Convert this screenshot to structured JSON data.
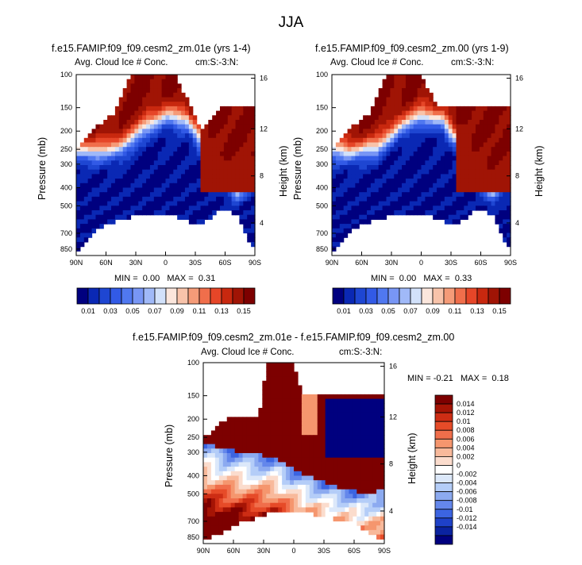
{
  "figure_title": "JJA",
  "chart_data": [
    {
      "type": "heatmap",
      "title": "f.e15.FAMIP.f09_f09.cesm2_zm.01e (yrs 1-4)",
      "left_label": "Avg. Cloud Ice # Conc.",
      "right_label": "cm:S:-3:N:",
      "ylabel": "Pressure (mb)",
      "y2label": "Height (km)",
      "x_ticks": [
        "90N",
        "60N",
        "30N",
        "0",
        "30S",
        "60S",
        "90S"
      ],
      "y_ticks": [
        "100",
        "150",
        "200",
        "250",
        "300",
        "400",
        "500",
        "700",
        "850"
      ],
      "y2_ticks": [
        "16",
        "12",
        "8",
        "4"
      ],
      "min_label": "MIN =",
      "min": "0.00",
      "max_label": "MAX =",
      "max": "0.31"
    },
    {
      "type": "heatmap",
      "title": "f.e15.FAMIP.f09_f09.cesm2_zm.00 (yrs 1-9)",
      "left_label": "Avg. Cloud Ice # Conc.",
      "right_label": "cm:S:-3:N:",
      "ylabel": "Pressure (mb)",
      "y2label": "Height (km)",
      "x_ticks": [
        "90N",
        "60N",
        "30N",
        "0",
        "30S",
        "60S",
        "90S"
      ],
      "y_ticks": [
        "100",
        "150",
        "200",
        "250",
        "300",
        "400",
        "500",
        "700",
        "850"
      ],
      "y2_ticks": [
        "16",
        "12",
        "8",
        "4"
      ],
      "min_label": "MIN =",
      "min": "0.00",
      "max_label": "MAX =",
      "max": "0.33"
    },
    {
      "type": "heatmap",
      "title": "f.e15.FAMIP.f09_f09.cesm2_zm.01e - f.e15.FAMIP.f09_f09.cesm2_zm.00",
      "left_label": "Avg. Cloud Ice # Conc.",
      "right_label": "cm:S:-3:N:",
      "ylabel": "Pressure (mb)",
      "y2label": "Height (km)",
      "x_ticks": [
        "90N",
        "60N",
        "30N",
        "0",
        "30S",
        "60S",
        "90S"
      ],
      "y_ticks": [
        "100",
        "150",
        "200",
        "250",
        "300",
        "400",
        "500",
        "700",
        "850"
      ],
      "y2_ticks": [
        "16",
        "12",
        "8",
        "4"
      ],
      "min_label": "MIN =",
      "min": "-0.21",
      "max_label": "MAX =",
      "max": "0.18"
    }
  ],
  "colorbar_top": {
    "colors": [
      "#00007f",
      "#0a28b4",
      "#1e46d2",
      "#325ae6",
      "#5078f0",
      "#7896f5",
      "#a0b9f8",
      "#d2e1fa",
      "#fbe6dc",
      "#f8c3aa",
      "#f59b78",
      "#f06e4b",
      "#e64628",
      "#c8280f",
      "#a01405",
      "#7d0000"
    ],
    "labels": [
      "0.01",
      "0.03",
      "0.05",
      "0.07",
      "0.09",
      "0.11",
      "0.13",
      "0.15"
    ]
  },
  "colorbar_diff": {
    "colors": [
      "#7d0000",
      "#a51405",
      "#cd2d14",
      "#e64b28",
      "#f06e4b",
      "#f5966e",
      "#f8b99b",
      "#fbdccd",
      "#ffffff",
      "#dce8fa",
      "#b4cdf8",
      "#8caaf0",
      "#6487eb",
      "#3c64e1",
      "#1e41c8",
      "#0a23a0",
      "#00007f"
    ],
    "labels": [
      "0.014",
      "0.012",
      "0.01",
      "0.008",
      "0.006",
      "0.004",
      "0.002",
      "0",
      "-0.002",
      "-0.004",
      "-0.006",
      "-0.008",
      "-0.01",
      "-0.012",
      "-0.014"
    ]
  }
}
